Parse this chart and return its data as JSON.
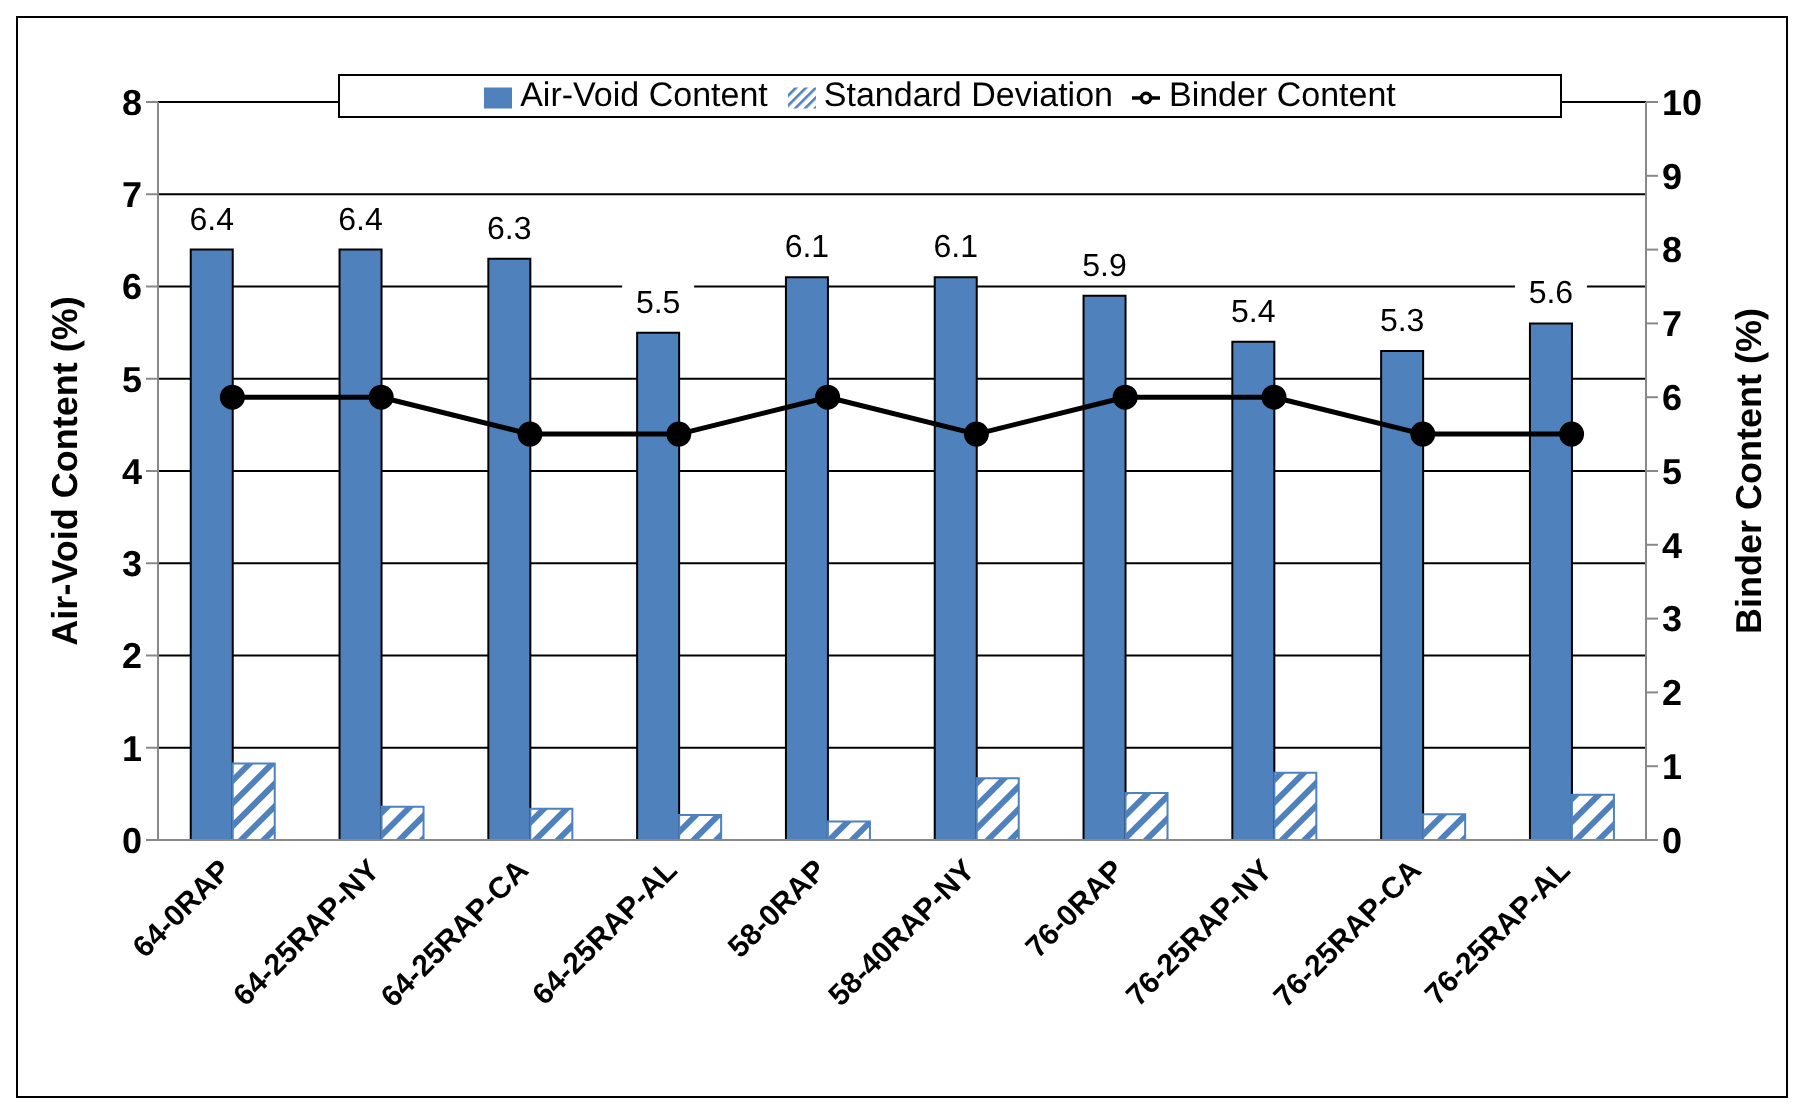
{
  "chart_data": {
    "type": "bar",
    "ylabel": "Air-Void Content  (%)",
    "y2label": "Binder Content  (%)",
    "categories": [
      "64-0RAP",
      "64-25RAP-NY",
      "64-25RAP-CA",
      "64-25RAP-AL",
      "58-0RAP",
      "58-40RAP-NY",
      "76-0RAP",
      "76-25RAP-NY",
      "76-25RAP-CA",
      "76-25RAP-AL"
    ],
    "series": [
      {
        "name": "Air-Void Content",
        "color": "#4f81bd",
        "values": [
          6.4,
          6.4,
          6.3,
          5.5,
          6.1,
          6.1,
          5.9,
          5.4,
          5.3,
          5.6
        ],
        "value_labels": [
          "6.4",
          "6.4",
          "6.3",
          "5.5",
          "6.1",
          "6.1",
          "5.9",
          "5.4",
          "5.3",
          "5.6"
        ]
      },
      {
        "name": "Standard Deviation",
        "color": "#4f81bd",
        "values": [
          0.83,
          0.36,
          0.34,
          0.27,
          0.2,
          0.67,
          0.51,
          0.73,
          0.28,
          0.49
        ]
      },
      {
        "name": "Binder Content",
        "type": "line",
        "axis": "y2",
        "color": "#000000",
        "values": [
          6,
          6,
          5.5,
          5.5,
          6,
          5.5,
          6,
          6,
          5.5,
          5.5
        ]
      }
    ],
    "ylim": [
      0,
      8
    ],
    "yticks": [
      0,
      1,
      2,
      3,
      4,
      5,
      6,
      7,
      8
    ],
    "y2lim": [
      0,
      10
    ],
    "y2ticks": [
      0,
      1,
      2,
      3,
      4,
      5,
      6,
      7,
      8,
      9,
      10
    ],
    "grid": "y",
    "legend": "top",
    "marker": "circle"
  }
}
